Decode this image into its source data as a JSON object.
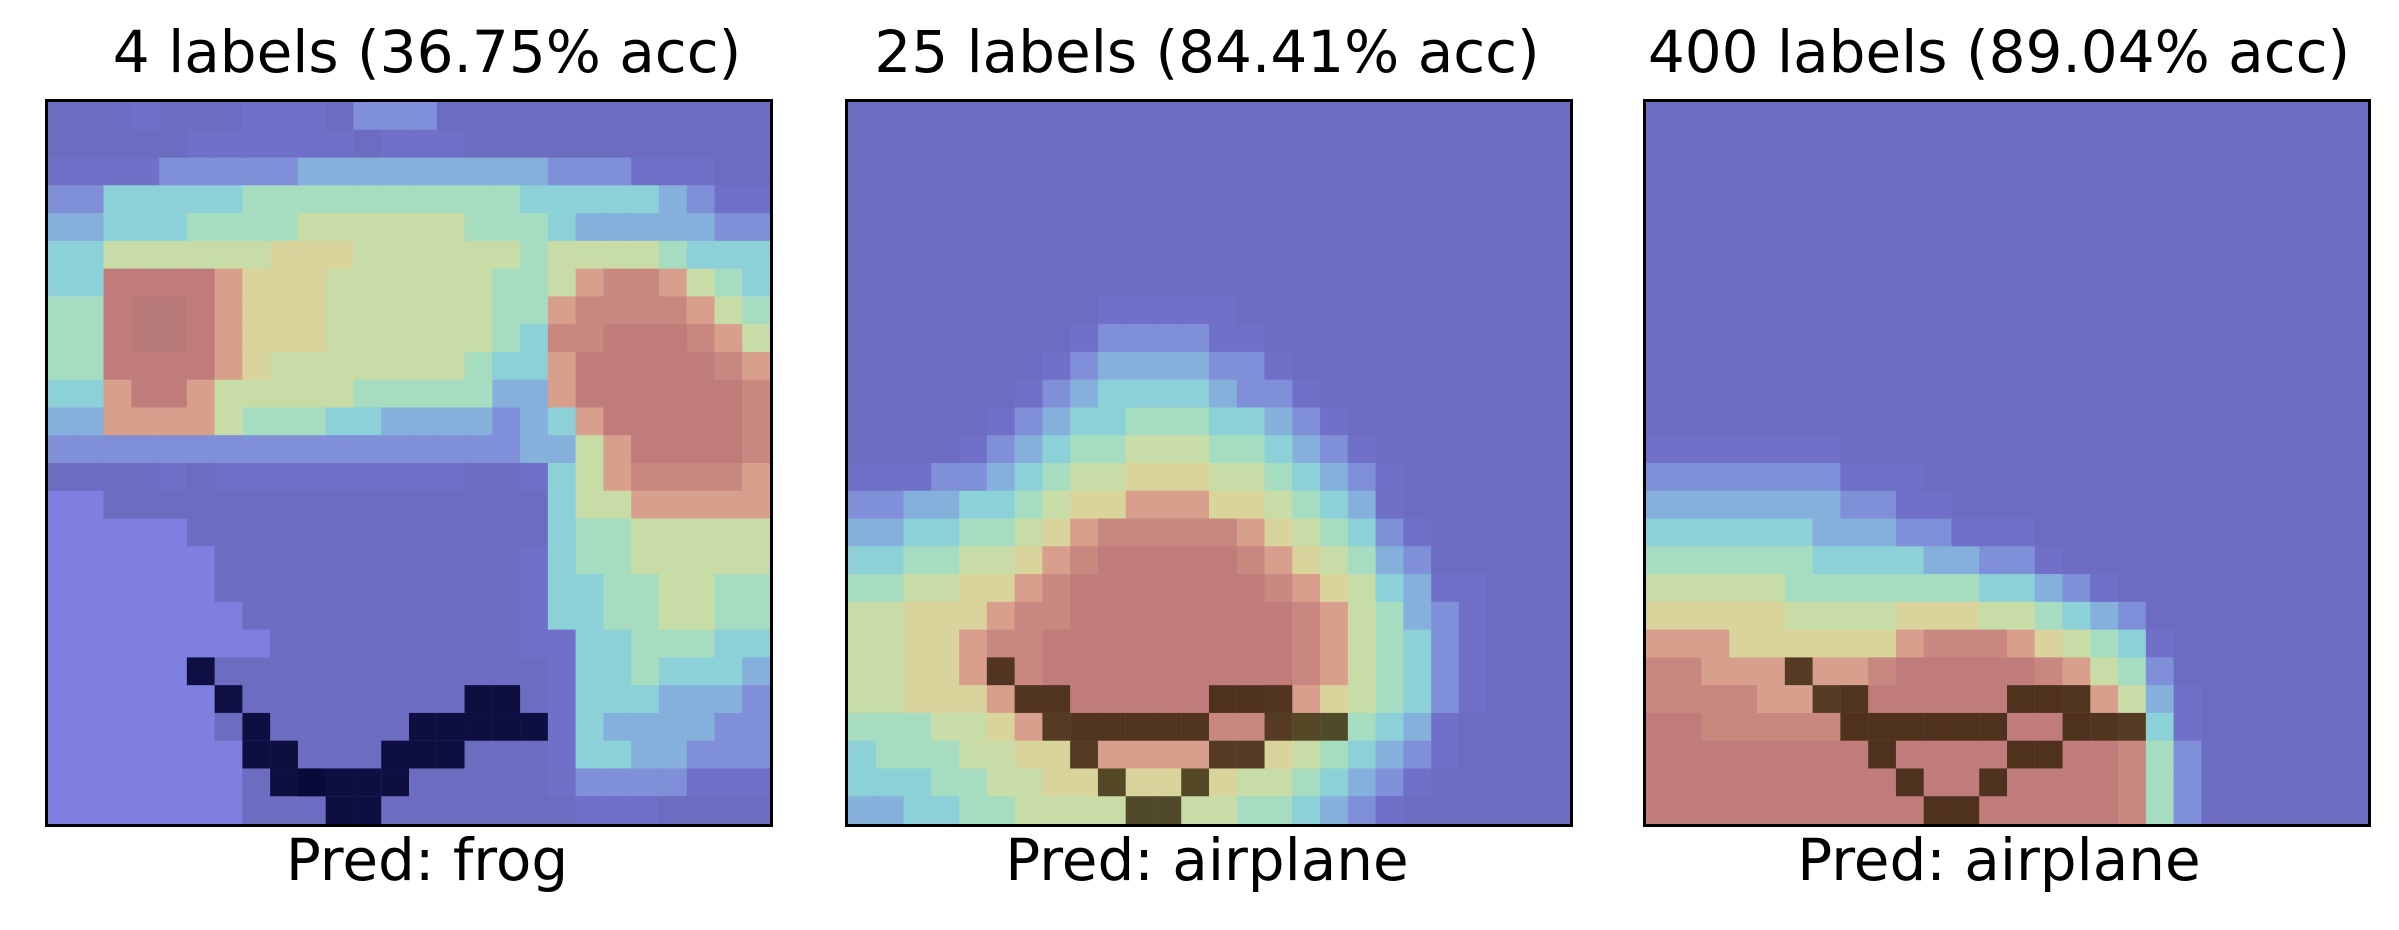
{
  "panels": [
    {
      "title": "4 labels (36.75% acc)",
      "prediction": "Pred: frog",
      "heatmap": [
        "bbbcbbbcccbdddbbbbbbbbbbbb",
        "bbbbbccccccbcccbbbbbbbbbbb",
        "ccccdddddeeeeeeeeedddcccbb",
        "ddfffffggggggggggfffffedcc",
        "eefffgggghhhhhhgggfeeeeedd",
        "ffhhhhhhiiihhhhhhghhhhgfff",
        "ffmmmmkiiihhhhhhgghkllkhgf",
        "ggmnnmkiiihhhhhhggkllllkhg",
        "ggmnnmkiiihhhhhhgfllmmmlkh",
        "ggmmmmkihhhhhhhgffkmmmmmlk",
        "ffkmmkhhhhhgggggeekmmmmmml",
        "eekkkkhgggffeeeedefkmmmmml",
        "dddddddddddddddddeehkmmmml",
        "bbbbcbcccccccccbbcfhkllllk",
        "aabbbbbbbbbbbbbbbbfhhkkkkk",
        "aaaaabbbbbbbbbbbbbfgghhhhh",
        "aaaaaabbbbbbbbbbbcfgghhhhh",
        "aaaaaabbbbbbbbbbbcffgghhgg",
        "aaaaaaabbbbbbbbbbcffgghhgg",
        "aaaaaaaabbbbbbbbbccffgggff",
        "aaaaaabbbbbbbbbbbbcffgfffe",
        "aaaaaaabbbbbbbbbbbcfffeeed",
        "aaaaaabbbbbbbbbbbbcfeeeedd",
        "aaaaaaabbbbbbbbbbbcffeeddd",
        "aaaaaaabbbbbbbbbbbcddddccc",
        "aaaaaaabbbbbbbbbbbbcccbbbb"
      ],
      "plane": "frog"
    },
    {
      "title": "25 labels (84.41% acc)",
      "prediction": "Pred: airplane",
      "heatmap": [
        "bbbbbbbbbbbbbbbbbbbbbbbbbb",
        "bbbbbbbbbbbbbbbbbbbbbbbbbb",
        "bbbbbbbbbbbbbbbbbbbbbbbbbb",
        "bbbbbbbbbbbbbbbbbbbbbbbbbb",
        "bbbbbbbbbbbbbbbbbbbbbbbbbb",
        "bbbbbbbbbbbbbbbbbbbbbbbbbb",
        "bbbbbbbbbbbbbbbbbbbbbbbbbb",
        "bbbbbbbbbcccccbbbbbbbbbbbb",
        "bbbbbbbbcddddccbbbbbbbbbbb",
        "bbbbbbbcdeeeeddcbbbbbbbbbb",
        "bbbbbbcdeffffeddcbbbbbbbbb",
        "bbbbbcdeffgggffedcbbbbbbbb",
        "bbbbcdefgghhhggfedcbbbbbbb",
        "cccddefghhiiihhgfedcbbbbbb",
        "ddeeffghiikkkiihgfecbbbbbb",
        "eeffgghiklllllkihgfdcbbbbb",
        "ffgghhiklmmmmmlkihgedbbbbb",
        "gghhiiklmmmmmmmlkihfeccbbb",
        "hhiiikllmmmmmmmmlkhgedcbbb",
        "hhiikllmmmmmmmmmlkhgfdcbbb",
        "hhiikllmmmmmmmmmlkhgfdcbbb",
        "hhiiikllmmmmmmmlkihgfdcbbb",
        "ggghhikklllllllkihgfecbbbb",
        "fggghhiikkkkkkkihgfedcbbbb",
        "fffgghhiiiiiiihhgfedcbbbbb",
        "eeffgghhhhhhhhggfedcbbbbbb"
      ],
      "plane": "airplane"
    },
    {
      "title": "400 labels (89.04% acc)",
      "prediction": "Pred: airplane",
      "heatmap": [
        "bbbbbbbbbbbbbbbbbbbbbbbbbb",
        "bbbbbbbbbbbbbbbbbbbbbbbbbb",
        "bbbbbbbbbbbbbbbbbbbbbbbbbb",
        "bbbbbbbbbbbbbbbbbbbbbbbbbb",
        "bbbbbbbbbbbbbbbbbbbbbbbbbb",
        "bbbbbbbbbbbbbbbbbbbbbbbbbb",
        "bbbbbbbbbbbbbbbbbbbbbbbbbb",
        "bbbbbbbbbbbbbbbbbbbbbbbbbb",
        "bbbbbbbbbbbbbbbbbbbbbbbbbb",
        "bbbbbbbbbbbbbbbbbbbbbbbbbb",
        "bbbbbbbbbbbbbbbbbbbbbbbbbb",
        "bbbbbbbbbbbbbbbbbbbbbbbbbb",
        "cccccccbbbbbbbbbbbbbbbbbbb",
        "dddddddcccbbbbbbbbbbbbbbbb",
        "eeeeeeeddccbbbbbbbbbbbbbbb",
        "ffffffeeeddcccbbbbbbbbbbbb",
        "ggggggffffeeddcbbbbbbbbbbb",
        "hhhhhgggggggffedcbbbbbbbbb",
        "iiiiihhhhiiihhgfedbbbbbbbb",
        "kkkiiiiiiklllkihgfcbbbbbbb",
        "llkkkkkklmmmmmlkhgdbbbbbbb",
        "llllkkklmmmmmmmlkhecbbbbbb",
        "mmlllllmmmmmmmmmlkfcbbbbbb",
        "mmmmmmmmmmmmmmmmmlgdbbbbbb",
        "mmmmmmmmmmmmmmmmmlgdbbbbbb",
        "mmmmmmmmmmmmmmmmmlgdbbbbbb"
      ],
      "plane": "airplane"
    }
  ],
  "colormap": [
    "#7f7fdf",
    "#6c6cc0",
    "#7070c8",
    "#7f8fd8",
    "#86b0dc",
    "#8cd0d8",
    "#a6dcc0",
    "#c8dca8",
    "#d8d49c",
    "#d8b890",
    "#d8a08c",
    "#c88880",
    "#c07c7a",
    "#b87a78"
  ]
}
